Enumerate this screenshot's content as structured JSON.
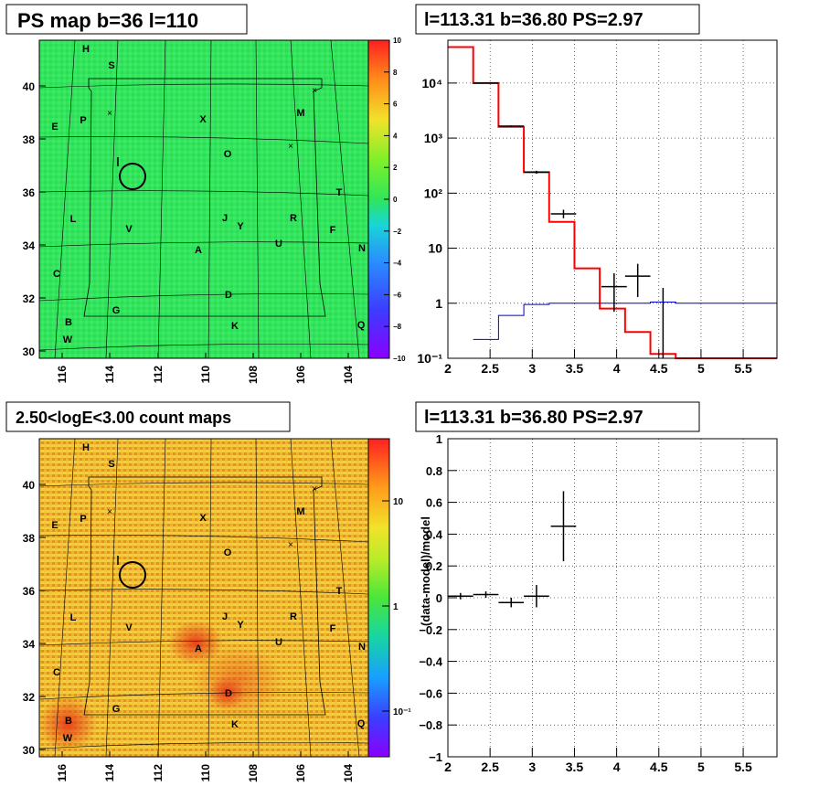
{
  "panels": {
    "tl_title": "PS map b=36 l=110",
    "tr_title": "l=113.31 b=36.80 PS=2.97",
    "bl_title": "2.50<logE<3.00 count maps",
    "br_title": "l=113.31 b=36.80 PS=2.97"
  },
  "map_axes": {
    "x_ticks": [
      "116",
      "114",
      "112",
      "110",
      "108",
      "106",
      "104"
    ],
    "y_ticks": [
      "40",
      "38",
      "36",
      "34",
      "32",
      "30"
    ]
  },
  "map_labels": [
    "H",
    "S",
    "M",
    "E",
    "P",
    "X",
    "O",
    "T",
    "L",
    "V",
    "J",
    "Y",
    "R",
    "F",
    "U",
    "N",
    "C",
    "A",
    "D",
    "G",
    "B",
    "W",
    "K",
    "Q"
  ],
  "colorbar_ps": {
    "ticks": [
      "10",
      "8",
      "6",
      "4",
      "2",
      "0",
      "−2",
      "−4",
      "−6",
      "−8",
      "−10"
    ]
  },
  "colorbar_counts": {
    "ticks": [
      "10",
      "1",
      "10⁻¹"
    ]
  },
  "colors": {
    "ps_map_bg": "#2fe65a",
    "count_map_bg": "#f2b83a",
    "data_line": "#ff0000",
    "model_line": "#0000cc"
  },
  "chart_data": [
    {
      "type": "line",
      "title": "l=113.31 b=36.80 PS=2.97",
      "xlabel": "",
      "ylabel": "",
      "y_scale": "log",
      "xlim": [
        2.0,
        5.9
      ],
      "ylim": [
        0.1,
        60000
      ],
      "x_ticks": [
        "2",
        "2.5",
        "3",
        "3.5",
        "4",
        "4.5",
        "5",
        "5.5"
      ],
      "y_ticks": [
        "10⁻¹",
        "1",
        "10",
        "10²",
        "10³",
        "10⁴"
      ],
      "grid": true,
      "series": [
        {
          "style": "step",
          "color": "#ff0000",
          "edges": [
            2.0,
            2.3,
            2.6,
            2.9,
            3.2,
            3.5,
            3.8,
            4.1,
            4.4,
            4.7,
            5.9
          ],
          "values": [
            45000,
            10000,
            1600,
            240,
            30,
            4.3,
            0.8,
            0.3,
            0.12,
            0.1
          ]
        },
        {
          "style": "step",
          "color": "#0000cc",
          "edges": [
            2.3,
            2.6,
            2.9,
            3.2,
            3.5,
            3.8,
            4.1,
            4.4,
            4.7,
            5.9
          ],
          "values": [
            0.22,
            0.6,
            0.95,
            1.0,
            1.0,
            1.0,
            1.0,
            1.05,
            1.0
          ]
        },
        {
          "style": "errorbar",
          "color": "#000000",
          "points": [
            {
              "x": 2.45,
              "y": 10000,
              "xerr": 0.15,
              "ylo": 9800,
              "yhi": 10200
            },
            {
              "x": 2.75,
              "y": 1650,
              "xerr": 0.15,
              "ylo": 1600,
              "yhi": 1700
            },
            {
              "x": 3.05,
              "y": 240,
              "xerr": 0.15,
              "ylo": 225,
              "yhi": 255
            },
            {
              "x": 3.37,
              "y": 42,
              "xerr": 0.15,
              "ylo": 35,
              "yhi": 50
            },
            {
              "x": 3.97,
              "y": 2.0,
              "xerr": 0.15,
              "ylo": 0.7,
              "yhi": 3.5
            },
            {
              "x": 4.25,
              "y": 3.1,
              "xerr": 0.15,
              "ylo": 1.3,
              "yhi": 5.2
            },
            {
              "x": 4.55,
              "y": 0.1,
              "xerr": 0.0,
              "ylo": 0.1,
              "yhi": 1.9
            }
          ]
        }
      ]
    },
    {
      "type": "scatter",
      "title": "l=113.31 b=36.80 PS=2.97",
      "xlabel": "",
      "ylabel": "(data-model)/model",
      "xlim": [
        2.0,
        5.9
      ],
      "ylim": [
        -1,
        1
      ],
      "x_ticks": [
        "2",
        "2.5",
        "3",
        "3.5",
        "4",
        "4.5",
        "5",
        "5.5"
      ],
      "y_ticks": [
        "−1",
        "−0.8",
        "−0.6",
        "−0.4",
        "−0.2",
        "0",
        "0.2",
        "0.4",
        "0.6",
        "0.8",
        "1"
      ],
      "grid": true,
      "points": [
        {
          "x": 2.15,
          "y": 0.01,
          "xerr": 0.15,
          "yerr": 0.02
        },
        {
          "x": 2.45,
          "y": 0.02,
          "xerr": 0.15,
          "yerr": 0.02
        },
        {
          "x": 2.75,
          "y": -0.03,
          "xerr": 0.15,
          "yerr": 0.03
        },
        {
          "x": 3.05,
          "y": 0.01,
          "xerr": 0.15,
          "yerr": 0.07
        },
        {
          "x": 3.37,
          "y": 0.45,
          "xerr": 0.15,
          "yerr": 0.22
        }
      ]
    }
  ]
}
